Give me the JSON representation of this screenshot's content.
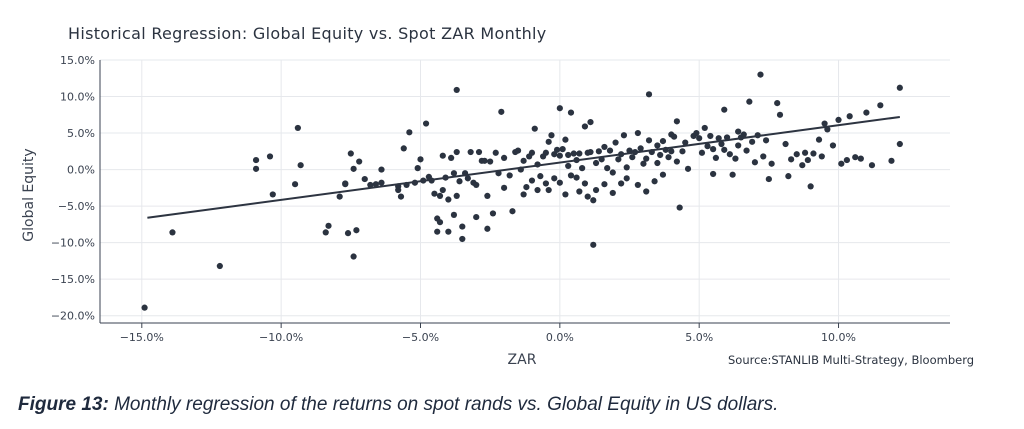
{
  "chart_data": {
    "type": "scatter",
    "title": "Historical Regression: Global Equity vs. Spot ZAR Monthly",
    "xlabel": "ZAR",
    "ylabel": "Global Equity",
    "xlim": [
      -0.165,
      0.14
    ],
    "ylim": [
      -0.21,
      0.15
    ],
    "x_ticks": [
      -0.15,
      -0.1,
      -0.05,
      0.0,
      0.05,
      0.1
    ],
    "x_tick_labels": [
      "−15.0%",
      "−10.0%",
      "−5.0%",
      "0.0%",
      "5.0%",
      "10.0%"
    ],
    "y_ticks": [
      0.15,
      0.1,
      0.05,
      0.0,
      -0.05,
      -0.1,
      -0.15,
      -0.2
    ],
    "y_tick_labels": [
      "15.0%",
      "10.0%",
      "5.0%",
      "0.0%",
      "−5.0%",
      "−10.0%",
      "−15.0%",
      "−20.0%"
    ],
    "grid": true,
    "regression_line": {
      "x": [
        -0.148,
        0.122
      ],
      "y": [
        -0.066,
        0.072
      ]
    },
    "points": [
      [
        -0.149,
        -0.189
      ],
      [
        -0.139,
        -0.086
      ],
      [
        -0.122,
        -0.132
      ],
      [
        -0.109,
        0.013
      ],
      [
        -0.109,
        0.001
      ],
      [
        -0.104,
        0.018
      ],
      [
        -0.103,
        -0.034
      ],
      [
        -0.095,
        -0.02
      ],
      [
        -0.094,
        0.057
      ],
      [
        -0.093,
        0.006
      ],
      [
        -0.084,
        -0.086
      ],
      [
        -0.083,
        -0.077
      ],
      [
        -0.079,
        -0.037
      ],
      [
        -0.077,
        -0.019
      ],
      [
        -0.077,
        -0.02
      ],
      [
        -0.076,
        -0.087
      ],
      [
        -0.075,
        0.022
      ],
      [
        -0.074,
        0.001
      ],
      [
        -0.074,
        -0.119
      ],
      [
        -0.073,
        -0.083
      ],
      [
        -0.072,
        0.011
      ],
      [
        -0.07,
        -0.013
      ],
      [
        -0.068,
        -0.021
      ],
      [
        -0.066,
        -0.02
      ],
      [
        -0.064,
        -0.018
      ],
      [
        -0.064,
        0.0
      ],
      [
        -0.058,
        -0.028
      ],
      [
        -0.058,
        -0.023
      ],
      [
        -0.057,
        -0.037
      ],
      [
        -0.056,
        0.029
      ],
      [
        -0.055,
        -0.021
      ],
      [
        -0.054,
        0.051
      ],
      [
        -0.052,
        -0.018
      ],
      [
        -0.051,
        0.002
      ],
      [
        -0.05,
        0.014
      ],
      [
        -0.049,
        -0.015
      ],
      [
        -0.048,
        0.063
      ],
      [
        -0.047,
        -0.01
      ],
      [
        -0.046,
        -0.015
      ],
      [
        -0.045,
        -0.033
      ],
      [
        -0.044,
        -0.067
      ],
      [
        -0.044,
        -0.085
      ],
      [
        -0.043,
        -0.036
      ],
      [
        -0.043,
        -0.072
      ],
      [
        -0.042,
        -0.028
      ],
      [
        -0.042,
        0.019
      ],
      [
        -0.041,
        -0.011
      ],
      [
        -0.04,
        -0.041
      ],
      [
        -0.04,
        -0.085
      ],
      [
        -0.039,
        0.016
      ],
      [
        -0.038,
        -0.005
      ],
      [
        -0.038,
        -0.062
      ],
      [
        -0.037,
        0.109
      ],
      [
        -0.037,
        -0.036
      ],
      [
        -0.037,
        0.024
      ],
      [
        -0.036,
        -0.016
      ],
      [
        -0.035,
        -0.078
      ],
      [
        -0.035,
        -0.095
      ],
      [
        -0.034,
        -0.005
      ],
      [
        -0.033,
        -0.012
      ],
      [
        -0.032,
        0.024
      ],
      [
        -0.031,
        -0.018
      ],
      [
        -0.03,
        -0.021
      ],
      [
        -0.03,
        -0.065
      ],
      [
        -0.029,
        0.024
      ],
      [
        -0.028,
        0.012
      ],
      [
        -0.027,
        0.012
      ],
      [
        -0.026,
        -0.036
      ],
      [
        -0.026,
        -0.081
      ],
      [
        -0.025,
        0.011
      ],
      [
        -0.024,
        -0.06
      ],
      [
        -0.023,
        0.023
      ],
      [
        -0.022,
        -0.005
      ],
      [
        -0.021,
        0.079
      ],
      [
        -0.02,
        0.016
      ],
      [
        -0.02,
        -0.025
      ],
      [
        -0.018,
        -0.008
      ],
      [
        -0.017,
        -0.057
      ],
      [
        -0.016,
        0.024
      ],
      [
        -0.015,
        0.026
      ],
      [
        -0.014,
        0.0
      ],
      [
        -0.013,
        -0.034
      ],
      [
        -0.013,
        0.012
      ],
      [
        -0.012,
        -0.024
      ],
      [
        -0.011,
        0.018
      ],
      [
        -0.01,
        0.023
      ],
      [
        -0.01,
        -0.015
      ],
      [
        -0.009,
        0.056
      ],
      [
        -0.008,
        0.007
      ],
      [
        -0.008,
        -0.028
      ],
      [
        -0.007,
        -0.009
      ],
      [
        -0.006,
        0.018
      ],
      [
        -0.005,
        0.023
      ],
      [
        -0.005,
        -0.019
      ],
      [
        -0.004,
        0.038
      ],
      [
        -0.004,
        -0.028
      ],
      [
        -0.003,
        0.047
      ],
      [
        -0.002,
        0.021
      ],
      [
        -0.002,
        -0.012
      ],
      [
        -0.001,
        0.027
      ],
      [
        0.0,
        0.019
      ],
      [
        0.0,
        0.084
      ],
      [
        0.0,
        -0.018
      ],
      [
        0.001,
        0.028
      ],
      [
        0.002,
        0.041
      ],
      [
        0.002,
        -0.034
      ],
      [
        0.003,
        0.02
      ],
      [
        0.003,
        0.005
      ],
      [
        0.004,
        0.078
      ],
      [
        0.004,
        -0.008
      ],
      [
        0.005,
        0.022
      ],
      [
        0.006,
        -0.011
      ],
      [
        0.006,
        0.013
      ],
      [
        0.007,
        0.022
      ],
      [
        0.007,
        -0.03
      ],
      [
        0.008,
        0.002
      ],
      [
        0.009,
        0.059
      ],
      [
        0.009,
        -0.019
      ],
      [
        0.01,
        0.023
      ],
      [
        0.01,
        -0.037
      ],
      [
        0.011,
        0.065
      ],
      [
        0.011,
        0.024
      ],
      [
        0.012,
        -0.103
      ],
      [
        0.012,
        -0.042
      ],
      [
        0.013,
        0.009
      ],
      [
        0.013,
        -0.028
      ],
      [
        0.014,
        0.025
      ],
      [
        0.015,
        0.014
      ],
      [
        0.016,
        -0.02
      ],
      [
        0.016,
        0.031
      ],
      [
        0.017,
        0.002
      ],
      [
        0.018,
        0.026
      ],
      [
        0.019,
        -0.004
      ],
      [
        0.019,
        -0.032
      ],
      [
        0.02,
        0.037
      ],
      [
        0.021,
        0.014
      ],
      [
        0.022,
        -0.019
      ],
      [
        0.022,
        0.021
      ],
      [
        0.023,
        0.047
      ],
      [
        0.024,
        0.003
      ],
      [
        0.024,
        -0.012
      ],
      [
        0.025,
        0.026
      ],
      [
        0.026,
        0.017
      ],
      [
        0.027,
        0.024
      ],
      [
        0.028,
        0.05
      ],
      [
        0.028,
        -0.021
      ],
      [
        0.029,
        0.029
      ],
      [
        0.03,
        0.008
      ],
      [
        0.031,
        -0.03
      ],
      [
        0.031,
        0.015
      ],
      [
        0.032,
        0.103
      ],
      [
        0.032,
        0.04
      ],
      [
        0.033,
        0.024
      ],
      [
        0.034,
        -0.016
      ],
      [
        0.035,
        0.033
      ],
      [
        0.035,
        0.009
      ],
      [
        0.036,
        0.02
      ],
      [
        0.037,
        0.039
      ],
      [
        0.037,
        -0.007
      ],
      [
        0.038,
        0.027
      ],
      [
        0.039,
        0.017
      ],
      [
        0.04,
        0.048
      ],
      [
        0.04,
        0.025
      ],
      [
        0.041,
        0.045
      ],
      [
        0.042,
        0.066
      ],
      [
        0.042,
        0.011
      ],
      [
        0.043,
        -0.052
      ],
      [
        0.044,
        0.025
      ],
      [
        0.045,
        0.037
      ],
      [
        0.046,
        0.001
      ],
      [
        0.048,
        0.046
      ],
      [
        0.049,
        0.05
      ],
      [
        0.05,
        0.043
      ],
      [
        0.051,
        0.023
      ],
      [
        0.052,
        0.057
      ],
      [
        0.053,
        0.032
      ],
      [
        0.054,
        0.046
      ],
      [
        0.055,
        0.028
      ],
      [
        0.055,
        -0.006
      ],
      [
        0.056,
        0.016
      ],
      [
        0.057,
        0.043
      ],
      [
        0.058,
        0.035
      ],
      [
        0.059,
        0.082
      ],
      [
        0.059,
        0.027
      ],
      [
        0.06,
        0.044
      ],
      [
        0.061,
        0.021
      ],
      [
        0.062,
        -0.007
      ],
      [
        0.063,
        0.015
      ],
      [
        0.064,
        0.052
      ],
      [
        0.064,
        0.033
      ],
      [
        0.065,
        0.044
      ],
      [
        0.066,
        0.048
      ],
      [
        0.067,
        0.026
      ],
      [
        0.068,
        0.093
      ],
      [
        0.069,
        0.038
      ],
      [
        0.07,
        0.01
      ],
      [
        0.071,
        0.047
      ],
      [
        0.072,
        0.13
      ],
      [
        0.073,
        0.018
      ],
      [
        0.074,
        0.04
      ],
      [
        0.075,
        -0.013
      ],
      [
        0.076,
        0.008
      ],
      [
        0.078,
        0.091
      ],
      [
        0.079,
        0.075
      ],
      [
        0.081,
        0.035
      ],
      [
        0.082,
        -0.009
      ],
      [
        0.083,
        0.014
      ],
      [
        0.085,
        0.021
      ],
      [
        0.087,
        0.006
      ],
      [
        0.088,
        0.023
      ],
      [
        0.089,
        0.013
      ],
      [
        0.09,
        -0.023
      ],
      [
        0.091,
        0.022
      ],
      [
        0.093,
        0.041
      ],
      [
        0.094,
        0.018
      ],
      [
        0.095,
        0.063
      ],
      [
        0.096,
        0.055
      ],
      [
        0.098,
        0.033
      ],
      [
        0.1,
        0.068
      ],
      [
        0.101,
        0.008
      ],
      [
        0.104,
        0.073
      ],
      [
        0.106,
        0.017
      ],
      [
        0.108,
        0.015
      ],
      [
        0.11,
        0.078
      ],
      [
        0.112,
        0.006
      ],
      [
        0.115,
        0.088
      ],
      [
        0.119,
        0.012
      ],
      [
        0.122,
        0.035
      ],
      [
        0.103,
        0.013
      ],
      [
        0.122,
        0.112
      ]
    ]
  },
  "source": "Source:STANLIB Multi-Strategy, Bloomberg",
  "caption": {
    "label": "Figure 13:",
    "text": "Monthly regression of the returns on spot rands vs. Global Equity in US dollars."
  }
}
